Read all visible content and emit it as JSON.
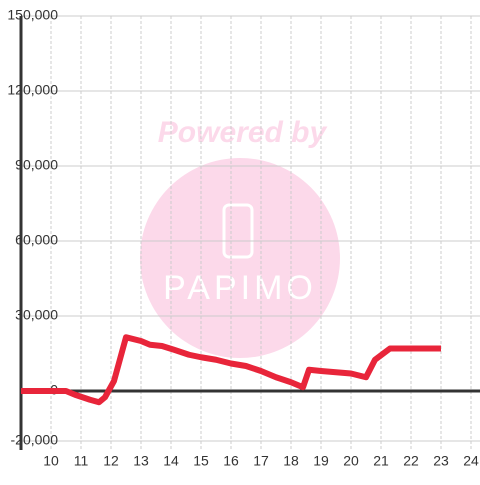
{
  "chart_data": {
    "type": "line",
    "watermark": {
      "line1": "Powered by",
      "line2": "PAPIMO"
    },
    "x": [
      9,
      10.5,
      10.8,
      11.3,
      11.6,
      11.8,
      12.1,
      12.5,
      13,
      13.3,
      13.7,
      14.1,
      14.6,
      15,
      15.5,
      16,
      16.5,
      17,
      17.5,
      18,
      18.4,
      18.6,
      19,
      20,
      20.5,
      20.8,
      21.3,
      23
    ],
    "series": [
      {
        "color": "#e8253a",
        "values": [
          0,
          0,
          -1500,
          -3500,
          -4500,
          -2500,
          4000,
          21500,
          20000,
          18500,
          18000,
          16500,
          14500,
          13500,
          12500,
          11000,
          10000,
          8000,
          5500,
          3500,
          1500,
          8500,
          8000,
          7000,
          5500,
          12500,
          17000,
          17000
        ]
      }
    ],
    "xlim": [
      9,
      24.3
    ],
    "xticks": [
      10,
      11,
      12,
      13,
      14,
      15,
      16,
      17,
      18,
      19,
      20,
      21,
      22,
      23,
      24
    ],
    "ylim": [
      -20000,
      150000
    ],
    "yticks": [
      {
        "value": -20000,
        "label": "-20,000"
      },
      0,
      {
        "value": 30000,
        "label": "30,000"
      },
      {
        "value": 60000,
        "label": "60,000"
      },
      {
        "value": 90000,
        "label": "90,000"
      },
      {
        "value": 120000,
        "label": "120,000"
      },
      {
        "value": 150000,
        "label": "150,000"
      }
    ],
    "grid": true
  }
}
